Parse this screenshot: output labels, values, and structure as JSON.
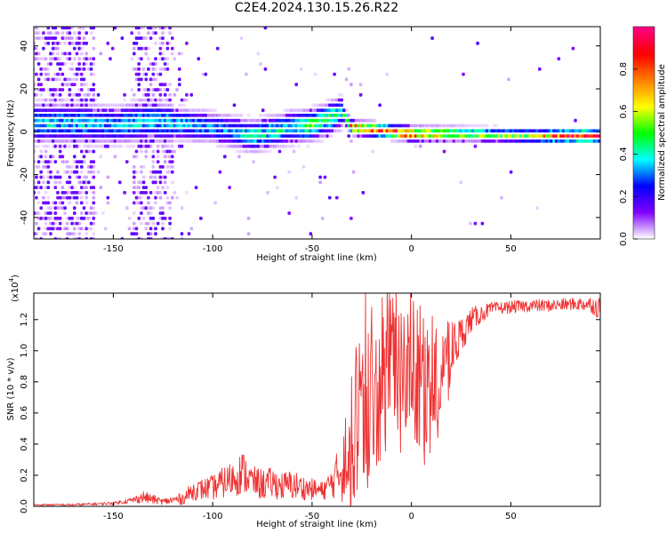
{
  "title": "C2E4.2024.130.15.26.R22",
  "chart_data": [
    {
      "type": "heatmap",
      "title": "C2E4.2024.130.15.26.R22",
      "xlabel": "Height of straight line (km)",
      "ylabel": "Frequency (Hz)",
      "xlim": [
        -190,
        95
      ],
      "ylim": [
        -50,
        49
      ],
      "x_ticks": [
        -150,
        -100,
        -50,
        0,
        50
      ],
      "x_tick_labels": [
        "-150",
        "-100",
        "-50",
        "0",
        "50"
      ],
      "y_ticks": [
        -40,
        -20,
        0,
        20,
        40
      ],
      "y_tick_labels": [
        "-40",
        "-20",
        "0",
        "20",
        "40"
      ],
      "colorbar": {
        "label": "Normalized spectral amplitude",
        "range": [
          0,
          1
        ],
        "ticks": [
          0.0,
          0.2,
          0.4,
          0.6,
          0.8
        ],
        "tick_labels": [
          "0.0",
          "0.2",
          "0.4",
          "0.6",
          "0.8"
        ],
        "colormap": [
          "#ffffff",
          "#8000ff",
          "#0000ff",
          "#00ffff",
          "#00ff00",
          "#ffff00",
          "#ff8000",
          "#ff0000",
          "#ff0080"
        ]
      },
      "ridge": {
        "description_values": "peak frequency centre vs height",
        "x": [
          -165,
          -150,
          -140,
          -130,
          -120,
          -110,
          -100,
          -90,
          -80,
          -70,
          -60,
          -50,
          -45,
          -40,
          -35,
          -30,
          -20,
          -10,
          0,
          10,
          20,
          40,
          60,
          80,
          95
        ],
        "frequency": [
          4,
          3,
          4,
          5,
          4,
          3,
          2,
          0,
          -2,
          0,
          2,
          3,
          5,
          7,
          9,
          2,
          1,
          0,
          -1,
          -1,
          -1,
          -1.5,
          -2,
          -2,
          -2
        ],
        "amplitude": [
          0.35,
          0.3,
          0.35,
          0.35,
          0.35,
          0.35,
          0.3,
          0.35,
          0.4,
          0.4,
          0.4,
          0.5,
          0.45,
          0.45,
          0.35,
          0.8,
          0.85,
          0.85,
          0.9,
          0.7,
          0.6,
          0.5,
          0.55,
          0.9,
          0.85
        ]
      },
      "noise_dense_ranges": [
        [
          -190,
          -160
        ],
        [
          -140,
          -120
        ]
      ]
    },
    {
      "type": "line",
      "xlabel": "Height of straight line (km)",
      "ylabel": "SNR (10 * v/v)",
      "y_multiplier_label": "(x10",
      "y_multiplier_exponent": "4",
      "xlim": [
        -190,
        95
      ],
      "ylim": [
        0,
        1.37
      ],
      "x_ticks": [
        -150,
        -100,
        -50,
        0,
        50
      ],
      "x_tick_labels": [
        "-150",
        "-100",
        "-50",
        "0",
        "50"
      ],
      "y_ticks": [
        0.0,
        0.2,
        0.4,
        0.6,
        0.8,
        1.0,
        1.2
      ],
      "y_tick_labels": [
        "0.0",
        "0.2",
        "0.4",
        "0.6",
        "0.8",
        "1.0",
        "1.2"
      ],
      "series": [
        {
          "color": "#ee3333",
          "x": [
            -190,
            -170,
            -150,
            -140,
            -135,
            -125,
            -115,
            -110,
            -100,
            -90,
            -85,
            -80,
            -75,
            -70,
            -65,
            -60,
            -55,
            -50,
            -45,
            -40,
            -35,
            -30,
            -28,
            -25,
            -20,
            -15,
            -10,
            -5,
            0,
            5,
            10,
            15,
            20,
            25,
            30,
            40,
            50,
            60,
            70,
            80,
            90,
            95
          ],
          "y": [
            0.01,
            0.01,
            0.02,
            0.04,
            0.06,
            0.03,
            0.05,
            0.1,
            0.12,
            0.18,
            0.22,
            0.16,
            0.14,
            0.15,
            0.13,
            0.14,
            0.12,
            0.11,
            0.1,
            0.15,
            0.25,
            0.45,
            0.6,
            0.65,
            0.7,
            0.75,
            0.8,
            0.85,
            0.85,
            0.7,
            0.75,
            0.85,
            1.0,
            1.1,
            1.2,
            1.27,
            1.28,
            1.29,
            1.29,
            1.3,
            1.3,
            1.27
          ],
          "spread": [
            0.005,
            0.008,
            0.01,
            0.02,
            0.04,
            0.02,
            0.04,
            0.06,
            0.08,
            0.12,
            0.14,
            0.1,
            0.1,
            0.1,
            0.09,
            0.1,
            0.08,
            0.07,
            0.06,
            0.1,
            0.2,
            0.35,
            0.45,
            0.45,
            0.5,
            0.45,
            0.45,
            0.4,
            0.4,
            0.35,
            0.3,
            0.25,
            0.2,
            0.12,
            0.08,
            0.04,
            0.04,
            0.04,
            0.04,
            0.04,
            0.05,
            0.08
          ]
        }
      ]
    }
  ]
}
